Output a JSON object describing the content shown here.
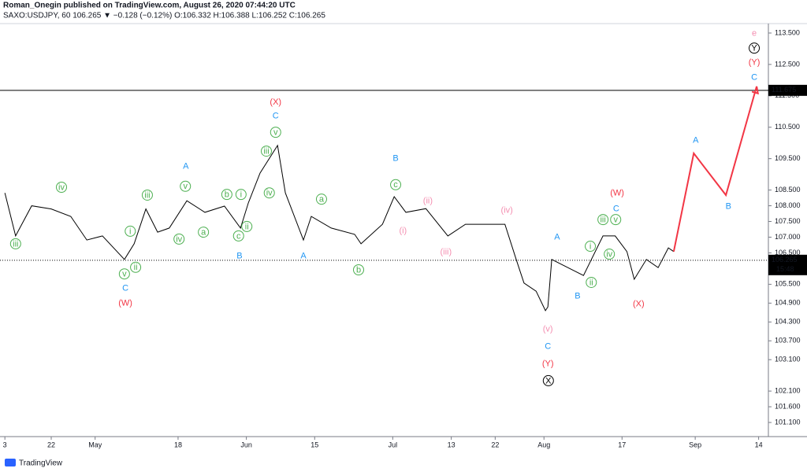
{
  "header": {
    "publisher": "Roman_Onegin published on TradingView.com, August 26, 2020 07:44:20 UTC",
    "symbol": "SAXO:USDJPY, 60 106.265 ▼ −0.128 (−0.12%) O:106.332 H:106.388 L:106.252 C:106.265"
  },
  "footer": {
    "brand": "TradingView"
  },
  "chart_data": {
    "type": "line",
    "xlim": [
      11.5,
      169
    ],
    "ylim": [
      100.65,
      113.8
    ],
    "grid": false,
    "xticks": [
      {
        "value": 12.5,
        "label": "3"
      },
      {
        "value": 22,
        "label": "22"
      },
      {
        "value": 31,
        "label": "May"
      },
      {
        "value": 48,
        "label": "18"
      },
      {
        "value": 62,
        "label": "Jun"
      },
      {
        "value": 76,
        "label": "15"
      },
      {
        "value": 92,
        "label": "Jul"
      },
      {
        "value": 104,
        "label": "13"
      },
      {
        "value": 113,
        "label": "22"
      },
      {
        "value": 123,
        "label": "Aug"
      },
      {
        "value": 139,
        "label": "17"
      },
      {
        "value": 154,
        "label": "Sep"
      },
      {
        "value": 167,
        "label": "14"
      }
    ],
    "yticks": [
      {
        "value": 113.5,
        "label": "113.500"
      },
      {
        "value": 112.5,
        "label": "112.500"
      },
      {
        "value": 111.5,
        "label": "111.500"
      },
      {
        "value": 110.5,
        "label": "110.500"
      },
      {
        "value": 109.5,
        "label": "109.500"
      },
      {
        "value": 108.5,
        "label": "108.500"
      },
      {
        "value": 108,
        "label": "108.000"
      },
      {
        "value": 107.5,
        "label": "107.500"
      },
      {
        "value": 107,
        "label": "107.000"
      },
      {
        "value": 106.5,
        "label": "106.500"
      },
      {
        "value": 105.5,
        "label": "105.500"
      },
      {
        "value": 104.9,
        "label": "104.900"
      },
      {
        "value": 104.3,
        "label": "104.300"
      },
      {
        "value": 103.7,
        "label": "103.700"
      },
      {
        "value": 103.1,
        "label": "103.100"
      },
      {
        "value": 102.1,
        "label": "102.100"
      },
      {
        "value": 101.6,
        "label": "101.600"
      },
      {
        "value": 101.1,
        "label": "101.100"
      }
    ],
    "hline": {
      "value": 111.675,
      "label": "111.675",
      "color": "#000000"
    },
    "price_line": {
      "value": 106.265,
      "label": "106.265",
      "countdown": "15:48",
      "color": "#000000"
    },
    "series": [
      {
        "color": "#000000",
        "x": [
          12.5,
          14.7,
          18,
          22,
          26,
          29.3,
          32.5,
          37,
          39,
          41.4,
          43.8,
          46.2,
          49.8,
          53.5,
          57.5,
          60.8,
          62.4,
          64.8,
          68.4,
          70,
          73.7,
          75.3,
          79.4,
          84.2,
          85.5,
          89.9,
          92.3,
          94.7,
          98.8,
          103.3,
          106.9,
          110.9,
          115,
          117.3,
          118.9,
          121.4,
          123.3,
          123.8,
          124.6,
          127.9,
          131.1,
          135.1,
          137.6,
          140,
          141.5,
          144,
          146.4,
          148.5,
          149.6
        ],
        "values": [
          108.41,
          107.04,
          108.0,
          107.9,
          107.66,
          106.91,
          107.04,
          106.29,
          106.79,
          107.9,
          107.16,
          107.29,
          108.16,
          107.79,
          107.99,
          107.29,
          108.09,
          109.04,
          109.92,
          108.41,
          106.91,
          107.66,
          107.29,
          107.09,
          106.79,
          107.41,
          108.29,
          107.79,
          107.91,
          107.04,
          107.41,
          107.41,
          107.41,
          106.29,
          105.54,
          105.28,
          104.66,
          104.78,
          106.29,
          106.03,
          105.78,
          107.04,
          107.04,
          106.54,
          105.66,
          106.29,
          106.03,
          106.66,
          106.54
        ]
      },
      {
        "color": "#f23645",
        "x": [
          149.6,
          153.7,
          160.3,
          166.6
        ],
        "values": [
          106.54,
          109.67,
          108.34,
          111.8
        ]
      }
    ],
    "annotations": [
      {
        "text": "iii",
        "x": 14.7,
        "y": 106.79,
        "color": "#4caf50",
        "circled": true
      },
      {
        "text": "iv",
        "x": 24.1,
        "y": 108.59,
        "color": "#4caf50",
        "circled": true
      },
      {
        "text": "v",
        "x": 37.0,
        "y": 105.83,
        "color": "#4caf50",
        "circled": true
      },
      {
        "text": "ii",
        "x": 39.3,
        "y": 106.04,
        "color": "#4caf50",
        "circled": true
      },
      {
        "text": "i",
        "x": 38.2,
        "y": 107.19,
        "color": "#4caf50",
        "circled": true
      },
      {
        "text": "iii",
        "x": 41.7,
        "y": 108.34,
        "color": "#4caf50",
        "circled": true
      },
      {
        "text": "iv",
        "x": 48.2,
        "y": 106.94,
        "color": "#4caf50",
        "circled": true
      },
      {
        "text": "v",
        "x": 49.5,
        "y": 108.62,
        "color": "#4caf50",
        "circled": true
      },
      {
        "text": "a",
        "x": 53.2,
        "y": 107.16,
        "color": "#4caf50",
        "circled": true
      },
      {
        "text": "b",
        "x": 58.0,
        "y": 108.36,
        "color": "#4caf50",
        "circled": true
      },
      {
        "text": "i",
        "x": 60.9,
        "y": 108.36,
        "color": "#4caf50",
        "circled": true
      },
      {
        "text": "c",
        "x": 60.4,
        "y": 107.04,
        "color": "#4caf50",
        "circled": true
      },
      {
        "text": "ii",
        "x": 62.1,
        "y": 107.34,
        "color": "#4caf50",
        "circled": true
      },
      {
        "text": "iii",
        "x": 66.1,
        "y": 109.74,
        "color": "#4caf50",
        "circled": true
      },
      {
        "text": "iv",
        "x": 66.7,
        "y": 108.41,
        "color": "#4caf50",
        "circled": true
      },
      {
        "text": "v",
        "x": 68.0,
        "y": 110.34,
        "color": "#4caf50",
        "circled": true
      },
      {
        "text": "a",
        "x": 77.4,
        "y": 108.21,
        "color": "#4caf50",
        "circled": true
      },
      {
        "text": "b",
        "x": 85.0,
        "y": 105.96,
        "color": "#4caf50",
        "circled": true
      },
      {
        "text": "c",
        "x": 92.6,
        "y": 108.67,
        "color": "#4caf50",
        "circled": true
      },
      {
        "text": "i",
        "x": 132.5,
        "y": 106.71,
        "color": "#4caf50",
        "circled": true
      },
      {
        "text": "ii",
        "x": 132.7,
        "y": 105.56,
        "color": "#4caf50",
        "circled": true
      },
      {
        "text": "iii",
        "x": 135.1,
        "y": 107.56,
        "color": "#4caf50",
        "circled": true
      },
      {
        "text": "v",
        "x": 137.7,
        "y": 107.56,
        "color": "#4caf50",
        "circled": true
      },
      {
        "text": "iv",
        "x": 136.4,
        "y": 106.46,
        "color": "#4caf50",
        "circled": true
      },
      {
        "text": "C",
        "x": 37.2,
        "y": 105.38,
        "color": "#2196f3",
        "circled": false
      },
      {
        "text": "B",
        "x": 60.6,
        "y": 106.41,
        "color": "#2196f3",
        "circled": false
      },
      {
        "text": "A",
        "x": 73.7,
        "y": 106.41,
        "color": "#2196f3",
        "circled": false
      },
      {
        "text": "A",
        "x": 49.6,
        "y": 109.27,
        "color": "#2196f3",
        "circled": false
      },
      {
        "text": "C",
        "x": 68.0,
        "y": 110.87,
        "color": "#2196f3",
        "circled": false
      },
      {
        "text": "B",
        "x": 92.6,
        "y": 109.52,
        "color": "#2196f3",
        "circled": false
      },
      {
        "text": "A",
        "x": 125.7,
        "y": 107.01,
        "color": "#2196f3",
        "circled": false
      },
      {
        "text": "B",
        "x": 129.9,
        "y": 105.13,
        "color": "#2196f3",
        "circled": false
      },
      {
        "text": "C",
        "x": 123.8,
        "y": 103.53,
        "color": "#2196f3",
        "circled": false
      },
      {
        "text": "C",
        "x": 137.8,
        "y": 107.91,
        "color": "#2196f3",
        "circled": false
      },
      {
        "text": "A",
        "x": 154.1,
        "y": 110.09,
        "color": "#2196f3",
        "circled": false
      },
      {
        "text": "B",
        "x": 160.8,
        "y": 107.99,
        "color": "#2196f3",
        "circled": false
      },
      {
        "text": "C",
        "x": 166.1,
        "y": 112.1,
        "color": "#2196f3",
        "circled": false
      },
      {
        "text": "(W)",
        "x": 37.2,
        "y": 104.91,
        "color": "#f23645",
        "circled": false
      },
      {
        "text": "(X)",
        "x": 68.0,
        "y": 111.3,
        "color": "#f23645",
        "circled": false
      },
      {
        "text": "(Y)",
        "x": 123.8,
        "y": 102.98,
        "color": "#f23645",
        "circled": false
      },
      {
        "text": "(W)",
        "x": 138.0,
        "y": 108.41,
        "color": "#f23645",
        "circled": false
      },
      {
        "text": "(X)",
        "x": 142.4,
        "y": 104.88,
        "color": "#f23645",
        "circled": false
      },
      {
        "text": "(Y)",
        "x": 166.1,
        "y": 112.57,
        "color": "#f23645",
        "circled": false
      },
      {
        "text": "(ii)",
        "x": 99.2,
        "y": 108.16,
        "color": "#f48fb1",
        "circled": false
      },
      {
        "text": "(i)",
        "x": 94.1,
        "y": 107.21,
        "color": "#f48fb1",
        "circled": false
      },
      {
        "text": "(iii)",
        "x": 102.9,
        "y": 106.54,
        "color": "#f48fb1",
        "circled": false
      },
      {
        "text": "(iv)",
        "x": 115.4,
        "y": 107.86,
        "color": "#f48fb1",
        "circled": false
      },
      {
        "text": "(v)",
        "x": 123.8,
        "y": 104.08,
        "color": "#f48fb1",
        "circled": false
      },
      {
        "text": "e",
        "x": 166.1,
        "y": 113.5,
        "color": "#f48fb1",
        "circled": false
      },
      {
        "text": "X",
        "x": 123.9,
        "y": 102.43,
        "color": "#000000",
        "circled": true
      },
      {
        "text": "Y",
        "x": 166.1,
        "y": 113.02,
        "color": "#000000",
        "circled": true
      }
    ]
  }
}
